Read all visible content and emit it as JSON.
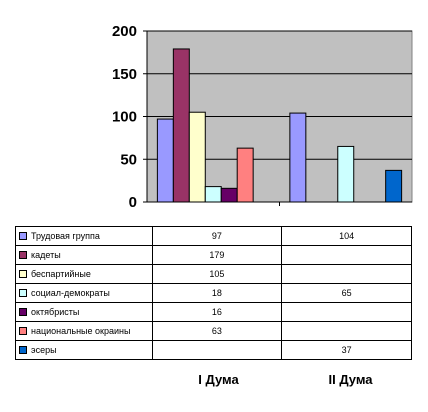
{
  "chart_data": {
    "type": "bar",
    "categories": [
      "I Дума",
      "II Дума"
    ],
    "series": [
      {
        "name": "Трудовая группа",
        "values": [
          97,
          104
        ],
        "color": "#9999FF"
      },
      {
        "name": "кадеты",
        "values": [
          179,
          null
        ],
        "color": "#993366"
      },
      {
        "name": "беспартийные",
        "values": [
          105,
          null
        ],
        "color": "#FFFFCC"
      },
      {
        "name": "социал-демократы",
        "values": [
          18,
          65
        ],
        "color": "#CCFFFF"
      },
      {
        "name": "октябристы",
        "values": [
          16,
          null
        ],
        "color": "#660066"
      },
      {
        "name": "национальные окраины",
        "values": [
          63,
          null
        ],
        "color": "#FF8080"
      },
      {
        "name": "эсеры",
        "values": [
          null,
          37
        ],
        "color": "#0066CC"
      }
    ],
    "ylim": [
      0,
      200
    ],
    "yticks": [
      0,
      50,
      100,
      150,
      200
    ],
    "grid": true,
    "plot_background": "#C0C0C0",
    "legend": "data table below chart"
  }
}
